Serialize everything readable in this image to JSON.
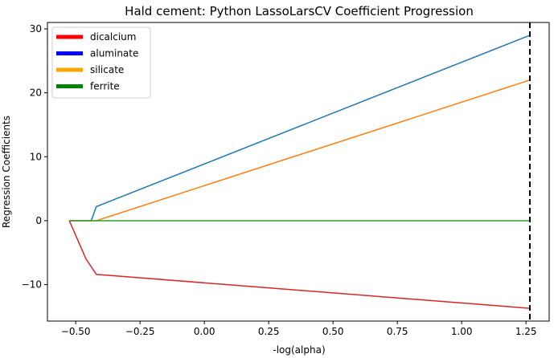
{
  "chart_data": {
    "type": "line",
    "title": "Hald cement: Python LassoLarsCV Coefficient Progression",
    "xlabel": "-log(alpha)",
    "ylabel": "Regression Coefficients",
    "xlim": [
      -0.61,
      1.34
    ],
    "ylim": [
      -15.7,
      31.0
    ],
    "xticks": [
      -0.5,
      -0.25,
      0.0,
      0.25,
      0.5,
      0.75,
      1.0,
      1.25
    ],
    "xtick_labels": [
      "−0.50",
      "−0.25",
      "0.00",
      "0.25",
      "0.50",
      "0.75",
      "1.00",
      "1.25"
    ],
    "yticks": [
      -10,
      0,
      10,
      20,
      30
    ],
    "ytick_labels": [
      "−10",
      "0",
      "10",
      "20",
      "30"
    ],
    "grid": false,
    "legend_position": "upper-left",
    "vline": {
      "x": 1.265,
      "style": "dashed",
      "color": "#000000"
    },
    "legend": [
      {
        "label": "dicalcium",
        "color": "#ff0000"
      },
      {
        "label": "aluminate",
        "color": "#0000ff"
      },
      {
        "label": "silicate",
        "color": "#ffa500"
      },
      {
        "label": "ferrite",
        "color": "#008000"
      }
    ],
    "series": [
      {
        "color": "#1f77b4",
        "points": [
          [
            -0.525,
            0.0
          ],
          [
            -0.44,
            0.0
          ],
          [
            -0.42,
            2.2
          ],
          [
            1.265,
            29.0
          ]
        ]
      },
      {
        "color": "#ff7f0e",
        "points": [
          [
            -0.525,
            0.0
          ],
          [
            -0.42,
            0.0
          ],
          [
            1.265,
            22.0
          ]
        ]
      },
      {
        "color": "#2ca02c",
        "points": [
          [
            -0.525,
            0.0
          ],
          [
            1.265,
            0.0
          ]
        ]
      },
      {
        "color": "#d62728",
        "points": [
          [
            -0.525,
            0.0
          ],
          [
            -0.46,
            -6.0
          ],
          [
            -0.42,
            -8.4
          ],
          [
            1.265,
            -13.7
          ]
        ]
      }
    ]
  }
}
